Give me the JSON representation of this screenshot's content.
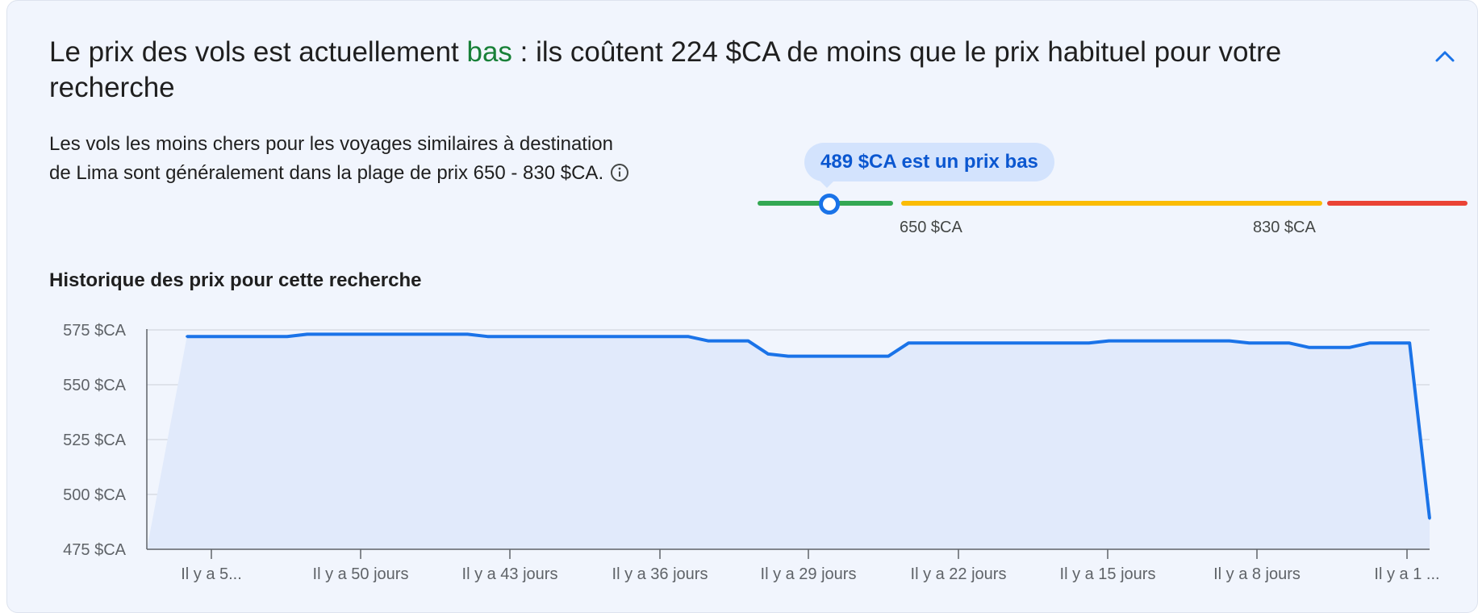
{
  "headline": {
    "prefix": "Le prix des vols est actuellement ",
    "level": "bas",
    "suffix": " : ils coûtent 224 $CA de moins que le prix habituel pour votre recherche"
  },
  "description": "Les vols les moins chers pour les voyages similaires à destination de Lima sont généralement dans la plage de prix 650 - 830 $CA.",
  "price_indicator": {
    "bubble": "489 $CA est un prix bas",
    "current_price": 489,
    "low_label": "650 $CA",
    "high_label": "830 $CA",
    "range_low": 650,
    "range_high": 830,
    "colors": {
      "low": "#34a853",
      "typical": "#fbbc04",
      "high": "#ea4335",
      "accent": "#1a73e8"
    }
  },
  "history_title": "Historique des prix pour cette recherche",
  "chart_data": {
    "type": "area",
    "x_tick_labels": [
      "Il y a 5...",
      "Il y a 50 jours",
      "Il y a 43 jours",
      "Il y a 36 jours",
      "Il y a 29 jours",
      "Il y a 22 jours",
      "Il y a 15 jours",
      "Il y a 8 jours",
      "Il y a 1 ..."
    ],
    "y_tick_labels": [
      "575 $CA",
      "550 $CA",
      "525 $CA",
      "500 $CA",
      "475 $CA"
    ],
    "ylim": [
      475,
      575
    ],
    "grid": true,
    "series": [
      {
        "points": [
          [
            -60,
            572
          ],
          [
            -55,
            572
          ],
          [
            -54,
            573
          ],
          [
            -46,
            573
          ],
          [
            -45,
            572
          ],
          [
            -35,
            572
          ],
          [
            -34,
            570
          ],
          [
            -32,
            570
          ],
          [
            -31,
            564
          ],
          [
            -30,
            563
          ],
          [
            -25,
            563
          ],
          [
            -24,
            569
          ],
          [
            -15,
            569
          ],
          [
            -14,
            570
          ],
          [
            -8,
            570
          ],
          [
            -7,
            569
          ],
          [
            -5,
            569
          ],
          [
            -4,
            567
          ],
          [
            -2,
            567
          ],
          [
            -1,
            569
          ],
          [
            1,
            569
          ],
          [
            2,
            489
          ]
        ],
        "color": "#1a73e8",
        "fill": "#e1eafb"
      }
    ]
  }
}
